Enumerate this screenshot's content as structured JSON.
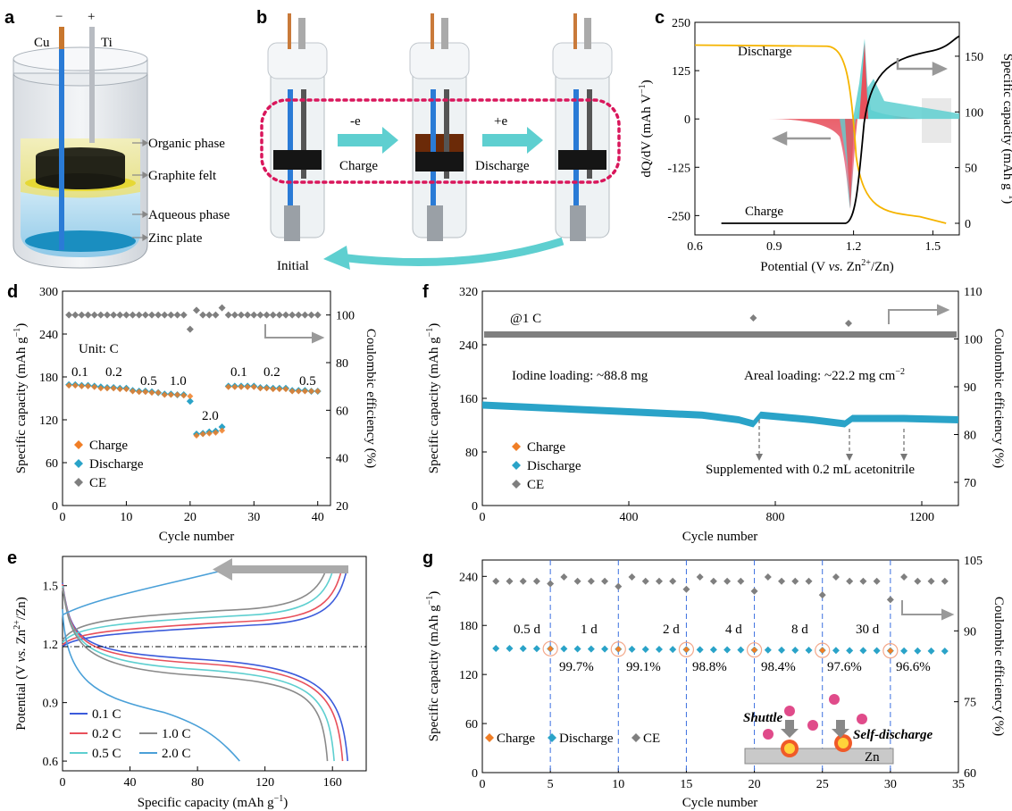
{
  "panels": {
    "a": {
      "letter": "a",
      "minus": "−",
      "plus": "+",
      "cu": "Cu",
      "ti": "Ti",
      "labels": [
        "Organic phase",
        "Graphite felt",
        "Aqueous phase",
        "Zinc plate"
      ]
    },
    "b": {
      "letter": "b",
      "charge": "Charge",
      "discharge": "Discharge",
      "minus_e": "-e",
      "plus_e": "+e",
      "initial": "Initial"
    },
    "c": {
      "letter": "c",
      "discharge": "Discharge",
      "charge": "Charge"
    },
    "d": {
      "letter": "d",
      "unit": "Unit: C"
    },
    "e": {
      "letter": "e"
    },
    "f": {
      "letter": "f",
      "rate": "@1 C",
      "iodine": "Iodine loading: ~88.8 mg",
      "areal": "Areal loading: ~22.2 mg cm",
      "supplement": "Supplemented with 0.2 mL acetonitrile"
    },
    "g": {
      "letter": "g",
      "shuttle": "Shuttle",
      "selfdis": "Self-discharge",
      "zn": "Zn"
    }
  },
  "colors": {
    "charge": "#f07e26",
    "discharge": "#2aa3c8",
    "ce": "#7f7f7f",
    "teal": "#5ecfd0",
    "red": "#e8505b",
    "yellow": "#f5b400",
    "blue": "#3b5bdb",
    "lightblue": "#4aa0d8"
  },
  "chart_data": [
    {
      "id": "c",
      "type": "line",
      "xlabel": "Potential (V vs. Zn2+/Zn)",
      "ylabel": "dQ/dV (mAh V-1)",
      "y2label": "Specific capacity (mAh g-1)",
      "xlim": [
        0.6,
        1.6
      ],
      "ylim": [
        -300,
        250
      ],
      "y2lim": [
        -8,
        170
      ],
      "xticks": [
        "0.6",
        "0.9",
        "1.2",
        "1.5"
      ],
      "yticks": [
        "250",
        "125",
        "0",
        "-125",
        "-250"
      ],
      "y2ticks": [
        "150",
        "100",
        "50",
        "0"
      ],
      "series": [
        {
          "name": "Discharge",
          "values_x": [
            0.6,
            1.1,
            1.16,
            1.2,
            1.25,
            1.3,
            1.4,
            1.5,
            1.55
          ],
          "values_y": [
            160,
            158,
            150,
            100,
            40,
            15,
            8,
            3,
            0
          ]
        },
        {
          "name": "Charge",
          "values_x": [
            0.7,
            1.15,
            1.2,
            1.23,
            1.27,
            1.35,
            1.5,
            1.6
          ],
          "values_y": [
            0,
            2,
            20,
            70,
            120,
            145,
            155,
            165
          ]
        }
      ]
    },
    {
      "id": "d",
      "type": "scatter",
      "xlabel": "Cycle number",
      "ylabel": "Specific capacity (mAh g-1)",
      "y2label": "Coulombic efficiency (%)",
      "xlim": [
        0,
        42
      ],
      "ylim": [
        0,
        300
      ],
      "y2lim": [
        20,
        110
      ],
      "xticks": [
        "0",
        "10",
        "20",
        "30",
        "40"
      ],
      "yticks": [
        "300",
        "240",
        "180",
        "120",
        "60",
        "0"
      ],
      "y2ticks": [
        "100",
        "80",
        "60",
        "40",
        "20"
      ],
      "rate_labels": [
        "0.1",
        "0.2",
        "0.5",
        "1.0",
        "2.0",
        "0.1",
        "0.2",
        "0.5"
      ],
      "legend": [
        "Charge",
        "Discharge",
        "CE"
      ],
      "series": [
        {
          "name": "Charge",
          "x": [
            1,
            2,
            3,
            4,
            5,
            6,
            7,
            8,
            9,
            10,
            11,
            12,
            13,
            14,
            15,
            16,
            17,
            18,
            19,
            20,
            21,
            22,
            23,
            24,
            25,
            26,
            27,
            28,
            29,
            30,
            31,
            32,
            33,
            34,
            35,
            36,
            37,
            38,
            39,
            40
          ],
          "values": [
            168,
            168,
            167,
            167,
            166,
            164,
            164,
            164,
            163,
            163,
            160,
            159,
            159,
            158,
            158,
            155,
            155,
            155,
            154,
            153,
            98,
            100,
            101,
            102,
            105,
            166,
            166,
            166,
            166,
            166,
            164,
            164,
            163,
            163,
            163,
            160,
            160,
            160,
            160,
            160
          ]
        },
        {
          "name": "Discharge",
          "x": [
            1,
            2,
            3,
            4,
            5,
            6,
            7,
            8,
            9,
            10,
            11,
            12,
            13,
            14,
            15,
            16,
            17,
            18,
            19,
            20,
            21,
            22,
            23,
            24,
            25,
            26,
            27,
            28,
            29,
            30,
            31,
            32,
            33,
            34,
            35,
            36,
            37,
            38,
            39,
            40
          ],
          "values": [
            169,
            169,
            168,
            168,
            167,
            166,
            165,
            165,
            164,
            164,
            161,
            160,
            160,
            159,
            158,
            156,
            156,
            155,
            155,
            146,
            100,
            101,
            103,
            104,
            110,
            167,
            167,
            167,
            167,
            167,
            165,
            165,
            164,
            164,
            164,
            161,
            161,
            161,
            160,
            160
          ]
        },
        {
          "name": "CE",
          "x": [
            1,
            2,
            3,
            4,
            5,
            6,
            7,
            8,
            9,
            10,
            11,
            12,
            13,
            14,
            15,
            16,
            17,
            18,
            19,
            20,
            21,
            22,
            23,
            24,
            25,
            26,
            27,
            28,
            29,
            30,
            31,
            32,
            33,
            34,
            35,
            36,
            37,
            38,
            39,
            40
          ],
          "values": [
            100,
            100,
            100,
            100,
            100,
            100,
            100,
            100,
            100,
            100,
            100,
            100,
            100,
            100,
            100,
            100,
            100,
            100,
            100,
            94,
            102,
            100,
            100,
            100,
            103,
            100,
            100,
            100,
            100,
            100,
            100,
            100,
            100,
            100,
            100,
            100,
            100,
            100,
            100,
            100
          ]
        }
      ]
    },
    {
      "id": "e",
      "type": "line",
      "xlabel": "Specific capacity (mAh g-1)",
      "ylabel": "Potential (V vs. Zn2+/Zn)",
      "xlim": [
        0,
        180
      ],
      "ylim": [
        0.55,
        1.65
      ],
      "xticks": [
        "0",
        "40",
        "80",
        "120",
        "160"
      ],
      "yticks": [
        "1.5",
        "1.2",
        "0.9",
        "0.6"
      ],
      "legend": [
        "0.1 C",
        "0.2 C",
        "0.5 C",
        "1.0 C",
        "2.0 C"
      ]
    },
    {
      "id": "f",
      "type": "scatter",
      "xlabel": "Cycle number",
      "ylabel": "Specific capacity (mAh g-1)",
      "y2label": "Coulombic efficiency (%)",
      "xlim": [
        0,
        1300
      ],
      "ylim": [
        0,
        320
      ],
      "y2lim": [
        65,
        110
      ],
      "xticks": [
        "0",
        "400",
        "800",
        "1200"
      ],
      "yticks": [
        "320",
        "240",
        "160",
        "80",
        "0"
      ],
      "y2ticks": [
        "110",
        "100",
        "90",
        "80",
        "70"
      ],
      "legend": [
        "Charge",
        "Discharge",
        "CE"
      ],
      "series": [
        {
          "name": "Discharge",
          "x": [
            0,
            200,
            400,
            600,
            700,
            740,
            760,
            900,
            990,
            1010,
            1150,
            1300
          ],
          "values": [
            150,
            145,
            140,
            135,
            128,
            122,
            135,
            128,
            122,
            130,
            130,
            128
          ]
        },
        {
          "name": "CE",
          "x": [
            0,
            1300
          ],
          "values": [
            100,
            100
          ]
        }
      ]
    },
    {
      "id": "g",
      "type": "scatter",
      "xlabel": "Cycle number",
      "ylabel": "Specific capacity (mAh g-1)",
      "y2label": "Coulombic efficiency (%)",
      "xlim": [
        0,
        35
      ],
      "ylim": [
        0,
        260
      ],
      "y2lim": [
        60,
        105
      ],
      "xticks": [
        "0",
        "5",
        "10",
        "15",
        "20",
        "25",
        "30",
        "35"
      ],
      "yticks": [
        "240",
        "180",
        "120",
        "60",
        "0"
      ],
      "y2ticks": [
        "105",
        "90",
        "75",
        "60"
      ],
      "rest_labels": [
        "0.5 d",
        "1 d",
        "2 d",
        "4 d",
        "8 d",
        "30 d"
      ],
      "retention": [
        "99.7%",
        "99.1%",
        "98.8%",
        "98.4%",
        "97.6%",
        "96.6%"
      ],
      "legend": [
        "Charge",
        "Discharge",
        "CE"
      ]
    }
  ]
}
